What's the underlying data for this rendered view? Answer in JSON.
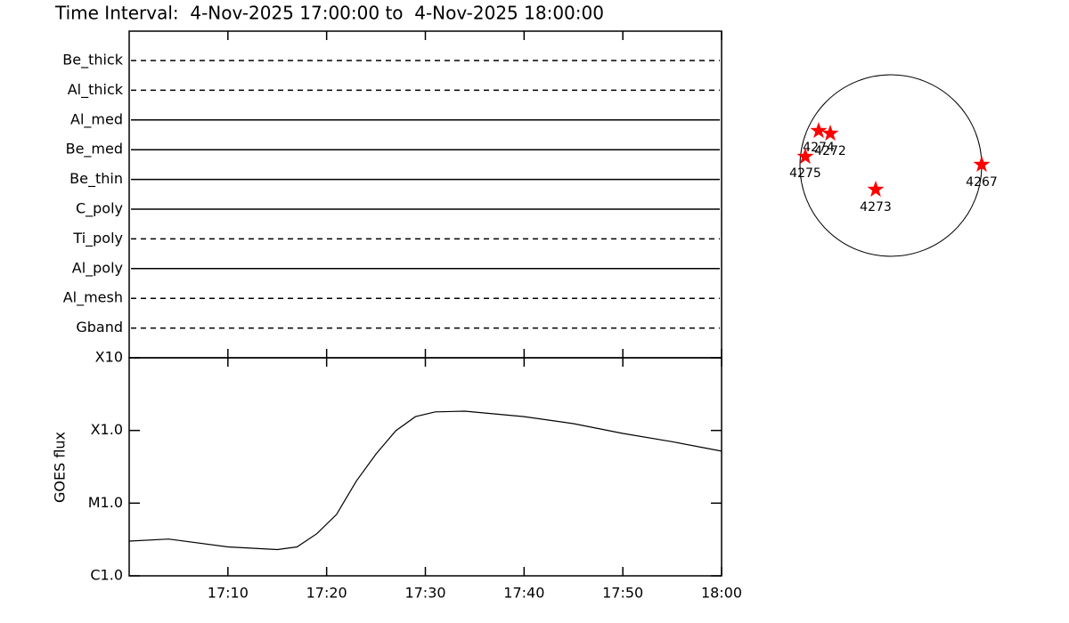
{
  "title": "Time Interval:  4-Nov-2025 17:00:00 to  4-Nov-2025 18:00:00",
  "filters": [
    {
      "name": "Be_thick",
      "style": "dashed"
    },
    {
      "name": "Al_thick",
      "style": "dashed"
    },
    {
      "name": "Al_med",
      "style": "solid"
    },
    {
      "name": "Be_med",
      "style": "solid"
    },
    {
      "name": "Be_thin",
      "style": "solid"
    },
    {
      "name": "C_poly",
      "style": "solid"
    },
    {
      "name": "Ti_poly",
      "style": "dashed"
    },
    {
      "name": "Al_poly",
      "style": "solid"
    },
    {
      "name": "Al_mesh",
      "style": "dashed"
    },
    {
      "name": "Gband",
      "style": "dashed"
    }
  ],
  "chart_data": {
    "type": "line",
    "ylabel": "GOES flux",
    "color": "#000000",
    "log_y": true,
    "x": [
      0,
      4,
      10,
      15,
      17,
      19,
      21,
      23,
      25,
      27,
      29,
      31,
      34,
      40,
      45,
      50,
      55,
      60
    ],
    "values": [
      3e-06,
      3.2e-06,
      2.5e-06,
      2.3e-06,
      2.5e-06,
      3.8e-06,
      7e-06,
      2e-05,
      4.75e-05,
      9.9e-05,
      0.000155,
      0.00018,
      0.000184,
      0.000155,
      0.000124,
      9.1e-05,
      7e-05,
      5.2e-05
    ],
    "xlim": [
      0,
      60
    ],
    "xticks": [
      {
        "value": 10,
        "label": "17:10"
      },
      {
        "value": 20,
        "label": "17:20"
      },
      {
        "value": 30,
        "label": "17:30"
      },
      {
        "value": 40,
        "label": "17:40"
      },
      {
        "value": 50,
        "label": "17:50"
      },
      {
        "value": 60,
        "label": "18:00"
      }
    ],
    "ylim": [
      1e-06,
      0.001
    ],
    "yticks": [
      {
        "value": 1e-06,
        "label": "C1.0"
      },
      {
        "value": 1e-05,
        "label": "M1.0"
      },
      {
        "value": 0.0001,
        "label": "X1.0"
      },
      {
        "value": 0.001,
        "label": "X10"
      }
    ]
  },
  "regions": [
    {
      "label": "4274"
    },
    {
      "label": "4272"
    },
    {
      "label": "4275"
    },
    {
      "label": "4273"
    },
    {
      "label": "4267"
    }
  ]
}
